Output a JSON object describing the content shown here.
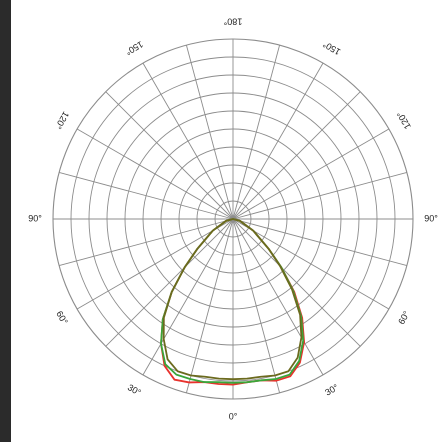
{
  "chart_data": {
    "type": "polar-line",
    "title": "",
    "angle_tick_labels": [
      {
        "deg": 0,
        "label": "0°"
      },
      {
        "deg": 30,
        "label": "30°"
      },
      {
        "deg": 60,
        "label": "60°"
      },
      {
        "deg": 90,
        "label": "90°"
      },
      {
        "deg": 120,
        "label": "120°"
      },
      {
        "deg": 150,
        "label": "150°"
      },
      {
        "deg": 180,
        "label": "180°"
      },
      {
        "deg": -150,
        "label": "150°"
      },
      {
        "deg": -120,
        "label": "120°"
      },
      {
        "deg": -90,
        "label": "90°"
      },
      {
        "deg": -60,
        "label": "60°"
      },
      {
        "deg": -30,
        "label": "30°"
      }
    ],
    "radial_rings": 10,
    "radial_range": [
      0,
      1
    ],
    "spoke_step_deg": 15,
    "grid": true,
    "legend": "none",
    "series": [
      {
        "color": "#e8322d",
        "points": [
          {
            "angle": -90,
            "r": 0.0
          },
          {
            "angle": -75,
            "r": 0.04
          },
          {
            "angle": -60,
            "r": 0.13
          },
          {
            "angle": -50,
            "r": 0.26
          },
          {
            "angle": -45,
            "r": 0.38
          },
          {
            "angle": -40,
            "r": 0.53
          },
          {
            "angle": -35,
            "r": 0.68
          },
          {
            "angle": -30,
            "r": 0.8
          },
          {
            "angle": -25,
            "r": 0.9
          },
          {
            "angle": -20,
            "r": 0.95
          },
          {
            "angle": -15,
            "r": 0.94
          },
          {
            "angle": -10,
            "r": 0.92
          },
          {
            "angle": -5,
            "r": 0.92
          },
          {
            "angle": 0,
            "r": 0.92
          },
          {
            "angle": 5,
            "r": 0.91
          },
          {
            "angle": 10,
            "r": 0.91
          },
          {
            "angle": 15,
            "r": 0.93
          },
          {
            "angle": 20,
            "r": 0.93
          },
          {
            "angle": 25,
            "r": 0.88
          },
          {
            "angle": 30,
            "r": 0.79
          },
          {
            "angle": 35,
            "r": 0.67
          },
          {
            "angle": 40,
            "r": 0.53
          },
          {
            "angle": 45,
            "r": 0.38
          },
          {
            "angle": 50,
            "r": 0.26
          },
          {
            "angle": 60,
            "r": 0.13
          },
          {
            "angle": 75,
            "r": 0.04
          },
          {
            "angle": 90,
            "r": 0.0
          }
        ]
      },
      {
        "color": "#3aa63a",
        "points": [
          {
            "angle": -90,
            "r": 0.0
          },
          {
            "angle": -75,
            "r": 0.04
          },
          {
            "angle": -60,
            "r": 0.13
          },
          {
            "angle": -50,
            "r": 0.26
          },
          {
            "angle": -45,
            "r": 0.38
          },
          {
            "angle": -40,
            "r": 0.53
          },
          {
            "angle": -35,
            "r": 0.68
          },
          {
            "angle": -30,
            "r": 0.8
          },
          {
            "angle": -25,
            "r": 0.89
          },
          {
            "angle": -20,
            "r": 0.92
          },
          {
            "angle": -15,
            "r": 0.92
          },
          {
            "angle": -10,
            "r": 0.92
          },
          {
            "angle": -5,
            "r": 0.91
          },
          {
            "angle": 0,
            "r": 0.91
          },
          {
            "angle": 5,
            "r": 0.91
          },
          {
            "angle": 10,
            "r": 0.91
          },
          {
            "angle": 15,
            "r": 0.92
          },
          {
            "angle": 20,
            "r": 0.92
          },
          {
            "angle": 25,
            "r": 0.87
          },
          {
            "angle": 30,
            "r": 0.78
          },
          {
            "angle": 35,
            "r": 0.66
          },
          {
            "angle": 40,
            "r": 0.52
          },
          {
            "angle": 45,
            "r": 0.38
          },
          {
            "angle": 50,
            "r": 0.26
          },
          {
            "angle": 60,
            "r": 0.13
          },
          {
            "angle": 75,
            "r": 0.04
          },
          {
            "angle": 90,
            "r": 0.0
          }
        ]
      },
      {
        "color": "#6b6a1e",
        "points": [
          {
            "angle": -90,
            "r": 0.0
          },
          {
            "angle": -75,
            "r": 0.04
          },
          {
            "angle": -60,
            "r": 0.13
          },
          {
            "angle": -50,
            "r": 0.26
          },
          {
            "angle": -45,
            "r": 0.38
          },
          {
            "angle": -40,
            "r": 0.53
          },
          {
            "angle": -35,
            "r": 0.67
          },
          {
            "angle": -30,
            "r": 0.77
          },
          {
            "angle": -25,
            "r": 0.86
          },
          {
            "angle": -20,
            "r": 0.9
          },
          {
            "angle": -15,
            "r": 0.9
          },
          {
            "angle": -10,
            "r": 0.89
          },
          {
            "angle": -5,
            "r": 0.89
          },
          {
            "angle": 0,
            "r": 0.89
          },
          {
            "angle": 5,
            "r": 0.89
          },
          {
            "angle": 10,
            "r": 0.89
          },
          {
            "angle": 15,
            "r": 0.9
          },
          {
            "angle": 20,
            "r": 0.9
          },
          {
            "angle": 25,
            "r": 0.85
          },
          {
            "angle": 30,
            "r": 0.76
          },
          {
            "angle": 35,
            "r": 0.65
          },
          {
            "angle": 40,
            "r": 0.51
          },
          {
            "angle": 45,
            "r": 0.37
          },
          {
            "angle": 50,
            "r": 0.26
          },
          {
            "angle": 60,
            "r": 0.13
          },
          {
            "angle": 75,
            "r": 0.04
          },
          {
            "angle": 90,
            "r": 0.0
          }
        ]
      }
    ]
  }
}
